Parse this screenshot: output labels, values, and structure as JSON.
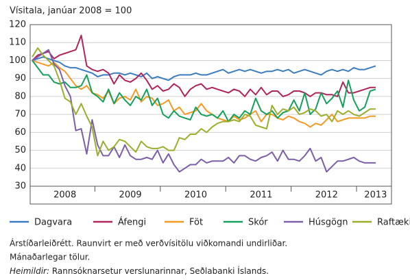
{
  "chart_data": {
    "type": "line",
    "title": "Vísitala, janúar 2008 = 100",
    "categories": [
      null,
      null,
      null,
      null,
      null,
      null,
      "2008",
      null,
      null,
      null,
      null,
      null,
      null,
      null,
      null,
      null,
      null,
      null,
      "2009",
      null,
      null,
      null,
      null,
      null,
      null,
      null,
      null,
      null,
      null,
      null,
      "2010",
      null,
      null,
      null,
      null,
      null,
      null,
      null,
      null,
      null,
      null,
      null,
      "2011",
      null,
      null,
      null,
      null,
      null,
      null,
      null,
      null,
      null,
      null,
      null,
      "2012",
      null,
      null,
      null,
      null,
      null,
      null,
      null,
      null,
      "2013"
    ],
    "series": [
      {
        "name": "Dagvara",
        "color": "#3a7bbf",
        "values": [
          100,
          101,
          102,
          101,
          100,
          99,
          97,
          96,
          96,
          95,
          94,
          93,
          91,
          92,
          92,
          93,
          93,
          92,
          93,
          92,
          91,
          93,
          90,
          91,
          90,
          89,
          91,
          92,
          92,
          92,
          93,
          92,
          92,
          93,
          94,
          95,
          93,
          94,
          95,
          94,
          95,
          94,
          93,
          94,
          94,
          95,
          94,
          95,
          93,
          94,
          95,
          94,
          93,
          92,
          94,
          95,
          94,
          95,
          94,
          96,
          95,
          95,
          96,
          97
        ]
      },
      {
        "name": "Áfengi",
        "color": "#b0235a",
        "values": [
          100,
          103,
          104,
          105,
          101,
          103,
          104,
          105,
          106,
          114,
          97,
          95,
          94,
          95,
          93,
          87,
          92,
          89,
          88,
          90,
          93,
          89,
          84,
          86,
          83,
          84,
          87,
          85,
          80,
          84,
          86,
          87,
          84,
          85,
          84,
          83,
          82,
          84,
          83,
          80,
          84,
          81,
          85,
          81,
          83,
          83,
          80,
          81,
          83,
          83,
          82,
          80,
          82,
          82,
          81,
          81,
          80,
          88,
          82,
          82,
          83,
          84,
          85,
          85
        ]
      },
      {
        "name": "Föt",
        "color": "#f39a26",
        "values": [
          100,
          99,
          98,
          97,
          99,
          96,
          94,
          90,
          86,
          84,
          86,
          82,
          81,
          79,
          83,
          76,
          79,
          80,
          78,
          84,
          77,
          80,
          79,
          75,
          76,
          78,
          72,
          74,
          70,
          71,
          72,
          76,
          72,
          70,
          68,
          67,
          66,
          69,
          67,
          68,
          70,
          72,
          66,
          70,
          70,
          68,
          67,
          69,
          68,
          66,
          65,
          63,
          65,
          64,
          67,
          70,
          66,
          67,
          68,
          68,
          68,
          68,
          69,
          69
        ]
      },
      {
        "name": "Skór",
        "color": "#14a05a",
        "values": [
          100,
          96,
          92,
          92,
          88,
          87,
          88,
          85,
          85,
          86,
          92,
          82,
          80,
          77,
          84,
          76,
          82,
          78,
          75,
          80,
          78,
          84,
          75,
          79,
          70,
          68,
          72,
          69,
          68,
          67,
          74,
          70,
          69,
          70,
          68,
          72,
          66,
          70,
          68,
          72,
          70,
          79,
          72,
          70,
          72,
          68,
          71,
          72,
          78,
          72,
          82,
          70,
          73,
          82,
          76,
          79,
          83,
          74,
          89,
          78,
          72,
          74,
          83,
          84
        ]
      },
      {
        "name": "Húsgögn",
        "color": "#7b5ea7",
        "values": [
          100,
          102,
          104,
          106,
          98,
          95,
          86,
          80,
          61,
          62,
          48,
          67,
          53,
          47,
          47,
          52,
          46,
          53,
          47,
          45,
          45,
          46,
          45,
          50,
          43,
          48,
          42,
          38,
          40,
          42,
          42,
          45,
          43,
          44,
          44,
          44,
          46,
          43,
          47,
          47,
          45,
          44,
          46,
          47,
          49,
          44,
          50,
          45,
          45,
          44,
          47,
          51,
          44,
          46,
          38,
          41,
          44,
          44,
          45,
          46,
          44,
          43,
          43,
          43
        ]
      },
      {
        "name": "Raftæki",
        "color": "#9bae2b",
        "values": [
          102,
          107,
          103,
          100,
          97,
          89,
          79,
          77,
          70,
          76,
          69,
          63,
          47,
          55,
          50,
          52,
          56,
          55,
          52,
          49,
          55,
          52,
          51,
          51,
          52,
          50,
          50,
          57,
          56,
          59,
          59,
          62,
          60,
          63,
          65,
          66,
          66,
          67,
          66,
          70,
          69,
          64,
          63,
          62,
          75,
          70,
          73,
          72,
          74,
          70,
          71,
          73,
          72,
          69,
          70,
          66,
          72,
          70,
          72,
          70,
          69,
          71,
          73,
          73
        ]
      }
    ],
    "ylim": [
      30,
      120
    ],
    "yticks": [
      30,
      40,
      50,
      60,
      70,
      80,
      90,
      100,
      110,
      120
    ],
    "grid": true,
    "legend": "bottom",
    "notes": [
      "Árstíðarleiðrétt. Raunvirt er með verðvísitölu viðkomandi undirliðar.",
      "Mánaðarlegar tölur."
    ],
    "source_label": "Heimildir:",
    "source_text": "Rannsóknarsetur verslunarinnar, Seðlabanki Íslands."
  }
}
